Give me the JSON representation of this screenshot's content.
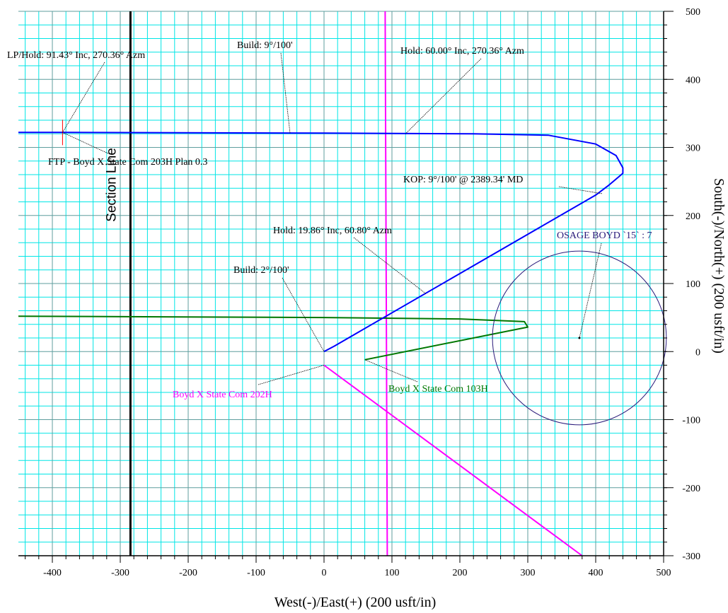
{
  "chart_data": {
    "type": "line",
    "xlabel": "West(-)/East(+) (200 usft/in)",
    "ylabel": "South(-)/North(+) (200 usft/in)",
    "xlim": [
      -450,
      500
    ],
    "ylim": [
      -300,
      500
    ],
    "x_ticks": [
      -400,
      -300,
      -200,
      -100,
      0,
      100,
      200,
      300,
      400,
      500
    ],
    "y_ticks": [
      -300,
      -200,
      -100,
      0,
      100,
      200,
      300,
      400,
      500
    ],
    "grid": true,
    "colors": {
      "major_grid": "#5f9e9e",
      "minor_grid": "#00e6e6",
      "plan_203H": "#0000ff",
      "well_202H": "#ff00ff",
      "well_103H": "#007700",
      "osage_circle": "#2a1a7a",
      "ftp_marker": "#ff0000"
    },
    "section_line": {
      "label": "Section Line",
      "x": -285
    },
    "wells": [
      {
        "name": "Boyd X State Com 202H",
        "color": "#ff00ff",
        "points": [
          [
            0,
            -20
          ],
          [
            380,
            -300
          ]
        ],
        "vertical_x": 90
      },
      {
        "name": "Boyd X State Com 103H",
        "color": "#007700",
        "points": [
          [
            60,
            -12
          ],
          [
            300,
            36
          ],
          [
            295,
            44
          ],
          [
            200,
            48
          ],
          [
            0,
            50
          ],
          [
            -450,
            52
          ]
        ]
      }
    ],
    "plan_203H": {
      "color": "#0000ff",
      "points": [
        [
          0,
          0
        ],
        [
          15,
          8
        ],
        [
          400,
          230
        ],
        [
          420,
          245
        ],
        [
          440,
          262
        ],
        [
          440,
          270
        ],
        [
          430,
          288
        ],
        [
          400,
          305
        ],
        [
          330,
          318
        ],
        [
          220,
          320
        ],
        [
          0,
          321
        ],
        [
          -385,
          322
        ],
        [
          -450,
          322
        ]
      ]
    },
    "osage_boyd": {
      "label": "OSAGE BOYD `15` : 7",
      "center": [
        376,
        20
      ],
      "radius": 128
    },
    "ftp_marker_at": [
      -385,
      322
    ],
    "annotations": [
      {
        "text": "LP/Hold: 91.43° Inc, 270.36° Azm",
        "point": [
          -385,
          322
        ]
      },
      {
        "text": "Build: 9°/100'",
        "point": [
          -50,
          321
        ]
      },
      {
        "text": "Hold: 60.00° Inc, 270.36° Azm",
        "point": [
          120,
          320
        ]
      },
      {
        "text": "FTP - Boyd X State Com 203H Plan 0.3",
        "point": [
          -385,
          322
        ]
      },
      {
        "text": "KOP: 9°/100' @ 2389.34' MD",
        "point": [
          410,
          232
        ]
      },
      {
        "text": "OSAGE BOYD `15` : 7",
        "point": [
          376,
          20
        ]
      },
      {
        "text": "Hold: 19.86° Inc, 60.80° Azm",
        "point": [
          150,
          85
        ]
      },
      {
        "text": "Build: 2°/100'",
        "point": [
          0,
          0
        ]
      },
      {
        "text": "Boyd X State Com 202H",
        "point": [
          0,
          -20
        ]
      },
      {
        "text": "Boyd X State Com 103H",
        "point": [
          60,
          -12
        ]
      }
    ]
  }
}
